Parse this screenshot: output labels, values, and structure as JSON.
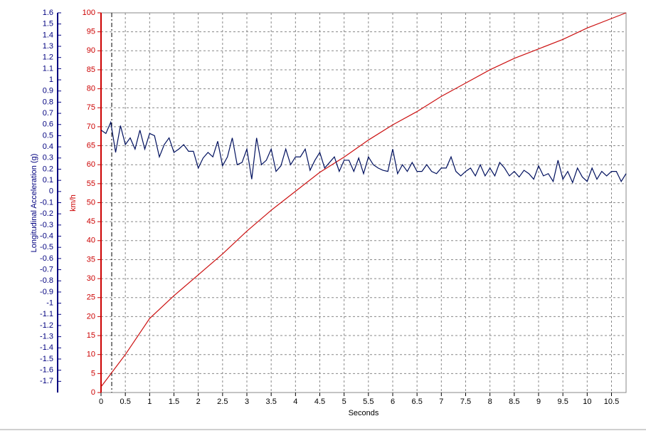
{
  "chart_data": {
    "type": "line",
    "xlabel": "Seconds",
    "ylabel": "km/h",
    "y2label": "Longitudinal Acceleration (g)",
    "xlim": [
      0,
      10.8
    ],
    "xticks": [
      0,
      0.5,
      1,
      1.5,
      2,
      2.5,
      3,
      3.5,
      4,
      4.5,
      5,
      5.5,
      6,
      6.5,
      7,
      7.5,
      8,
      8.5,
      9,
      9.5,
      10,
      10.5
    ],
    "ylim": [
      0,
      100
    ],
    "yticks": [
      0,
      5,
      10,
      15,
      20,
      25,
      30,
      35,
      40,
      45,
      50,
      55,
      60,
      65,
      70,
      75,
      80,
      85,
      90,
      95,
      100
    ],
    "y2lim": [
      -1.8,
      1.6
    ],
    "y2ticks": [
      1.6,
      1.5,
      1.4,
      1.3,
      1.2,
      1.1,
      1,
      0.9,
      0.8,
      0.7,
      0.6,
      0.5,
      0.4,
      0.3,
      0.2,
      0.1,
      0,
      -0.1,
      -0.2,
      -0.3,
      -0.4,
      -0.5,
      -0.6,
      -0.7,
      -0.8,
      -0.9,
      -1,
      -1.1,
      -1.2,
      -1.3,
      -1.4,
      -1.5,
      -1.6,
      -1.7
    ],
    "grid": true,
    "cursor": 0.22,
    "y_axis_color": "#cc0000",
    "y2_axis_color": "#00007f",
    "series": [
      {
        "color": "#cc1111",
        "x": [
          0,
          0.5,
          1,
          1.5,
          2,
          2.5,
          3,
          3.5,
          4,
          4.5,
          5,
          5.5,
          6,
          6.5,
          7,
          7.5,
          8,
          8.5,
          9,
          9.5,
          10,
          10.5,
          10.8
        ],
        "values": [
          1.5,
          10,
          19.5,
          25.5,
          31,
          36.5,
          42.5,
          48,
          53,
          58,
          62,
          66.5,
          70.5,
          74,
          78,
          81.5,
          85,
          88,
          90.5,
          93,
          96,
          98.5,
          100
        ]
      },
      {
        "color": "#00105e",
        "axis": "y2",
        "x": [
          0,
          0.1,
          0.2,
          0.3,
          0.4,
          0.5,
          0.6,
          0.7,
          0.8,
          0.9,
          1,
          1.1,
          1.2,
          1.3,
          1.4,
          1.5,
          1.6,
          1.7,
          1.8,
          1.9,
          2,
          2.1,
          2.2,
          2.3,
          2.4,
          2.5,
          2.6,
          2.7,
          2.8,
          2.9,
          3,
          3.1,
          3.2,
          3.3,
          3.4,
          3.5,
          3.6,
          3.7,
          3.8,
          3.9,
          4,
          4.1,
          4.2,
          4.3,
          4.4,
          4.5,
          4.6,
          4.7,
          4.8,
          4.9,
          5,
          5.1,
          5.2,
          5.3,
          5.4,
          5.5,
          5.6,
          5.7,
          5.8,
          5.9,
          6,
          6.1,
          6.2,
          6.3,
          6.4,
          6.5,
          6.6,
          6.7,
          6.8,
          6.9,
          7,
          7.1,
          7.2,
          7.3,
          7.4,
          7.5,
          7.6,
          7.7,
          7.8,
          7.9,
          8,
          8.1,
          8.2,
          8.3,
          8.4,
          8.5,
          8.6,
          8.7,
          8.8,
          8.9,
          9,
          9.1,
          9.2,
          9.3,
          9.4,
          9.5,
          9.6,
          9.7,
          9.8,
          9.9,
          10,
          10.1,
          10.2,
          10.3,
          10.4,
          10.5,
          10.6,
          10.7,
          10.8
        ],
        "values": [
          0.55,
          0.52,
          0.62,
          0.35,
          0.59,
          0.42,
          0.48,
          0.38,
          0.55,
          0.38,
          0.52,
          0.5,
          0.31,
          0.42,
          0.48,
          0.35,
          0.38,
          0.42,
          0.36,
          0.36,
          0.21,
          0.3,
          0.35,
          0.31,
          0.45,
          0.23,
          0.31,
          0.48,
          0.24,
          0.26,
          0.38,
          0.11,
          0.48,
          0.24,
          0.28,
          0.38,
          0.18,
          0.23,
          0.38,
          0.24,
          0.31,
          0.31,
          0.38,
          0.19,
          0.28,
          0.35,
          0.21,
          0.26,
          0.31,
          0.18,
          0.28,
          0.28,
          0.18,
          0.3,
          0.16,
          0.31,
          0.24,
          0.21,
          0.19,
          0.18,
          0.38,
          0.16,
          0.24,
          0.18,
          0.26,
          0.18,
          0.18,
          0.24,
          0.18,
          0.16,
          0.21,
          0.21,
          0.31,
          0.18,
          0.14,
          0.18,
          0.21,
          0.14,
          0.24,
          0.14,
          0.21,
          0.14,
          0.26,
          0.21,
          0.14,
          0.18,
          0.13,
          0.19,
          0.16,
          0.11,
          0.23,
          0.14,
          0.16,
          0.09,
          0.28,
          0.11,
          0.18,
          0.08,
          0.21,
          0.13,
          0.09,
          0.21,
          0.11,
          0.18,
          0.14,
          0.18,
          0.18,
          0.09,
          0.16
        ]
      }
    ]
  }
}
